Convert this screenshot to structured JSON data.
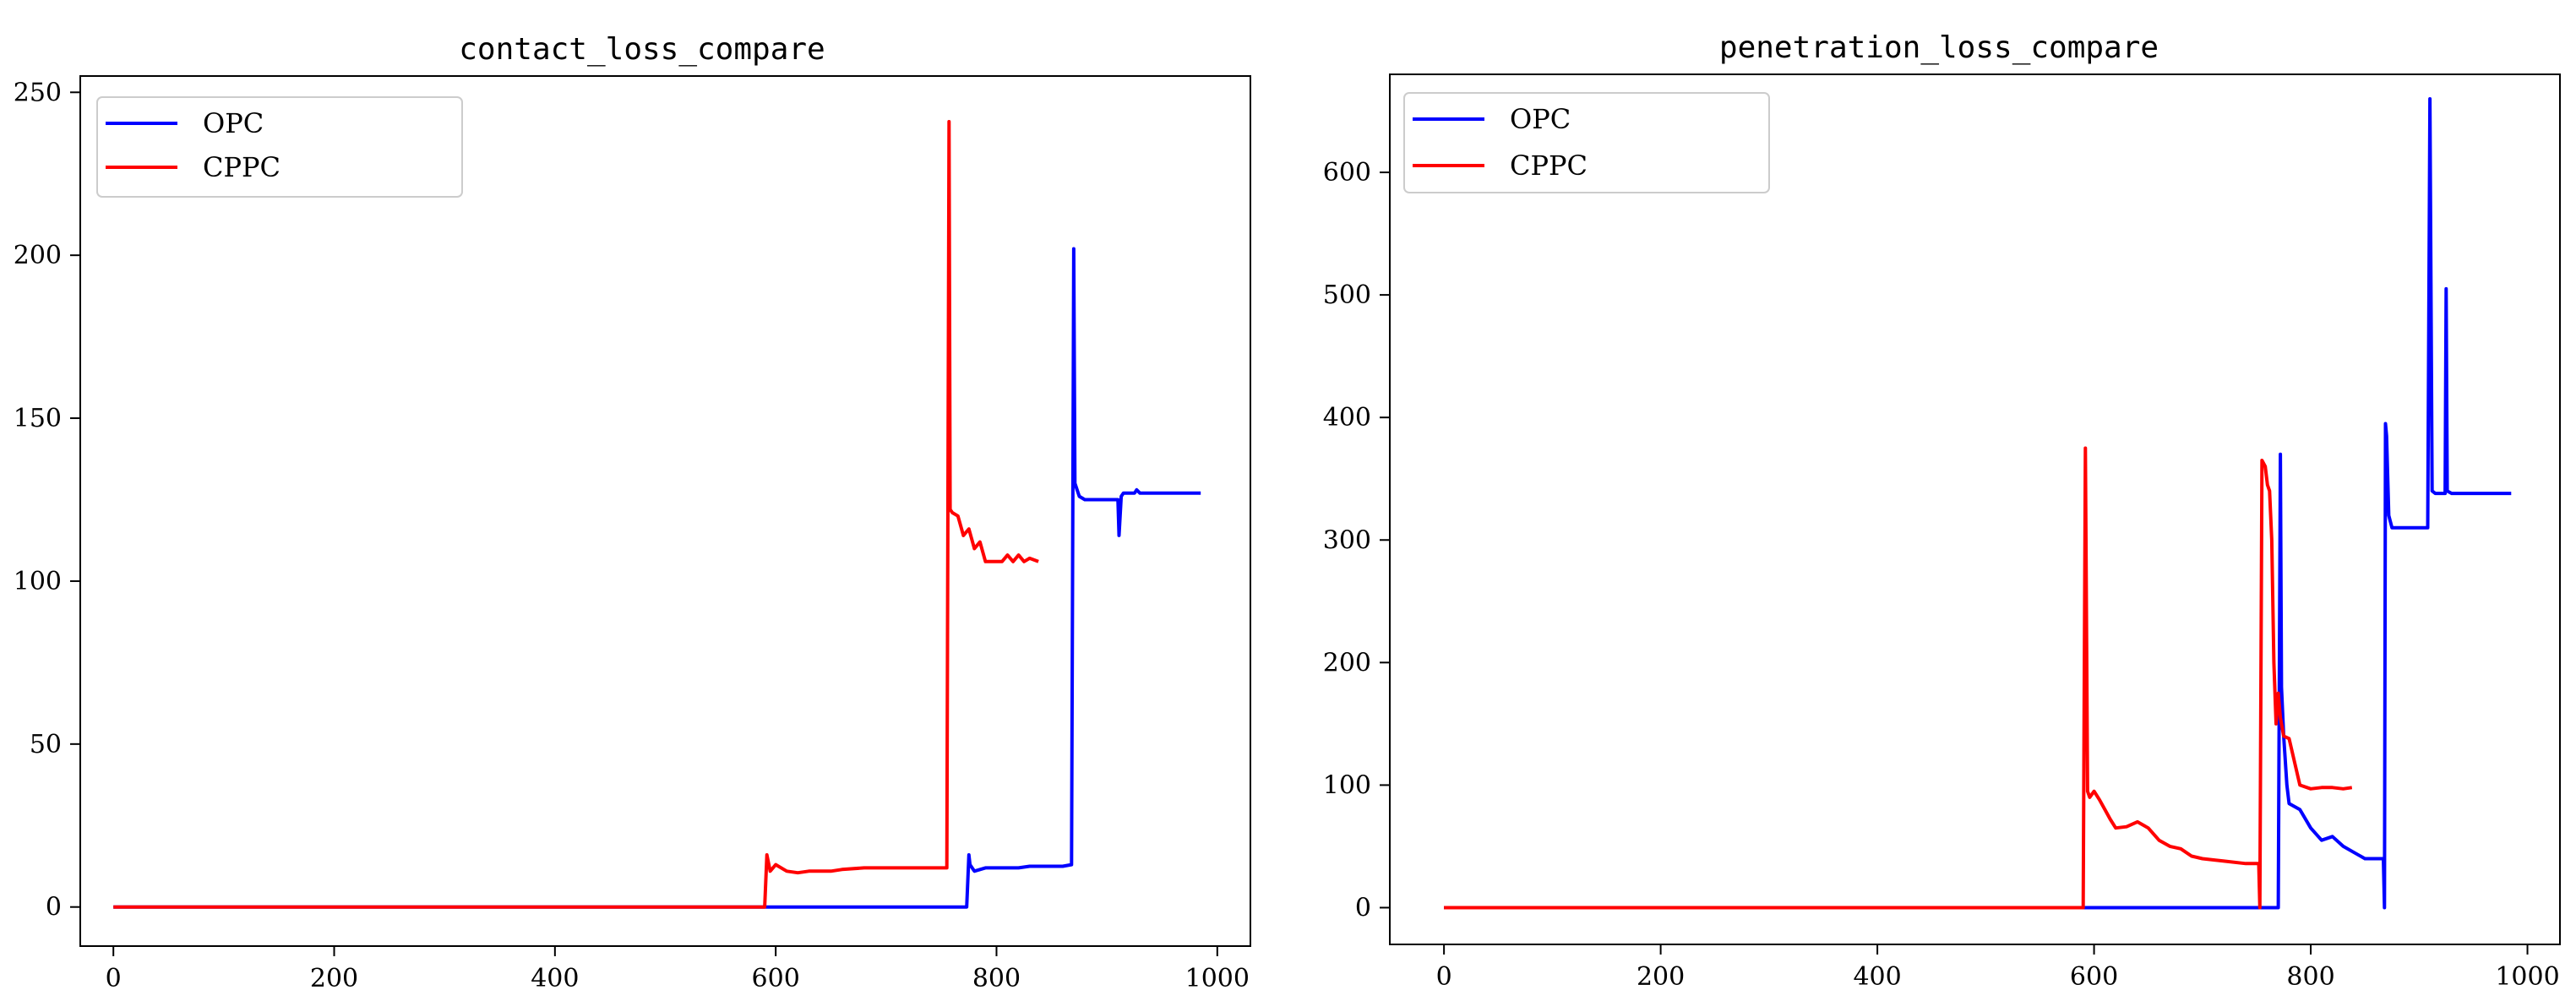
{
  "chart_data": [
    {
      "type": "line",
      "title": "contact_loss_compare",
      "xlabel": "",
      "ylabel": "",
      "xlim": [
        -30,
        1030
      ],
      "ylim": [
        -12,
        255
      ],
      "xticks": [
        0,
        200,
        400,
        600,
        800,
        1000
      ],
      "yticks": [
        0,
        50,
        100,
        150,
        200,
        250
      ],
      "legend": "top-left",
      "grid": false,
      "series": [
        {
          "name": "OPC",
          "color": "#0000ff",
          "x": [
            0,
            100,
            200,
            300,
            400,
            500,
            590,
            700,
            773,
            775,
            776,
            780,
            790,
            800,
            810,
            820,
            830,
            840,
            850,
            860,
            868,
            870,
            871,
            875,
            880,
            890,
            900,
            910,
            911,
            913,
            915,
            920,
            925,
            927,
            930,
            940,
            950,
            960,
            970,
            980,
            985
          ],
          "y": [
            0,
            0,
            0,
            0,
            0,
            0,
            0,
            0,
            0,
            16,
            13,
            11,
            12,
            12,
            12,
            12,
            12.5,
            12.5,
            12.5,
            12.5,
            13,
            202,
            130,
            126,
            125,
            125,
            125,
            125,
            114,
            126,
            127,
            127,
            127,
            128,
            127,
            127,
            127,
            127,
            127,
            127,
            127
          ]
        },
        {
          "name": "CPPC",
          "color": "#ff0000",
          "x": [
            0,
            100,
            200,
            300,
            400,
            500,
            590,
            592,
            595,
            600,
            610,
            620,
            630,
            640,
            650,
            660,
            680,
            700,
            720,
            740,
            755,
            757,
            758,
            760,
            765,
            770,
            775,
            780,
            785,
            790,
            795,
            800,
            805,
            810,
            815,
            820,
            825,
            830,
            838
          ],
          "y": [
            0,
            0,
            0,
            0,
            0,
            0,
            0,
            16,
            11,
            13,
            11,
            10.5,
            11,
            11,
            11,
            11.5,
            12,
            12,
            12,
            12,
            12,
            241,
            122,
            121,
            120,
            114,
            116,
            110,
            112,
            106,
            106,
            106,
            106,
            108,
            106,
            108,
            106,
            107,
            106
          ]
        }
      ]
    },
    {
      "type": "line",
      "title": "penetration_loss_compare",
      "xlabel": "",
      "ylabel": "",
      "xlim": [
        -50,
        1030
      ],
      "ylim": [
        -30,
        680
      ],
      "xticks": [
        0,
        200,
        400,
        600,
        800,
        1000
      ],
      "yticks": [
        0,
        100,
        200,
        300,
        400,
        500,
        600
      ],
      "legend": "top-left",
      "grid": false,
      "series": [
        {
          "name": "OPC",
          "color": "#0000ff",
          "x": [
            0,
            100,
            200,
            300,
            400,
            500,
            600,
            700,
            770,
            772,
            773,
            775,
            778,
            780,
            790,
            800,
            810,
            820,
            830,
            840,
            850,
            860,
            867,
            868,
            869,
            870,
            872,
            875,
            880,
            890,
            900,
            908,
            910,
            912,
            915,
            920,
            924,
            925,
            926,
            930,
            940,
            950,
            960,
            970,
            980,
            985
          ],
          "y": [
            0,
            0,
            0,
            0,
            0,
            0,
            0,
            0,
            0,
            370,
            180,
            140,
            100,
            85,
            80,
            65,
            55,
            58,
            50,
            45,
            40,
            40,
            40,
            0,
            395,
            385,
            320,
            310,
            310,
            310,
            310,
            310,
            660,
            340,
            338,
            338,
            338,
            505,
            340,
            338,
            338,
            338,
            338,
            338,
            338,
            338
          ]
        },
        {
          "name": "CPPC",
          "color": "#ff0000",
          "x": [
            0,
            100,
            200,
            300,
            400,
            500,
            590,
            592,
            594,
            596,
            600,
            605,
            610,
            615,
            620,
            630,
            640,
            650,
            660,
            670,
            680,
            690,
            700,
            720,
            740,
            750,
            752,
            753,
            755,
            758,
            760,
            762,
            764,
            766,
            768,
            770,
            772,
            775,
            780,
            790,
            800,
            810,
            820,
            830,
            838
          ],
          "y": [
            0,
            0,
            0,
            0,
            0,
            0,
            0,
            375,
            95,
            90,
            95,
            88,
            80,
            72,
            65,
            66,
            70,
            65,
            55,
            50,
            48,
            42,
            40,
            38,
            36,
            36,
            36,
            0,
            365,
            360,
            345,
            340,
            300,
            200,
            150,
            175,
            155,
            140,
            138,
            100,
            97,
            98,
            98,
            97,
            98
          ]
        }
      ]
    }
  ]
}
